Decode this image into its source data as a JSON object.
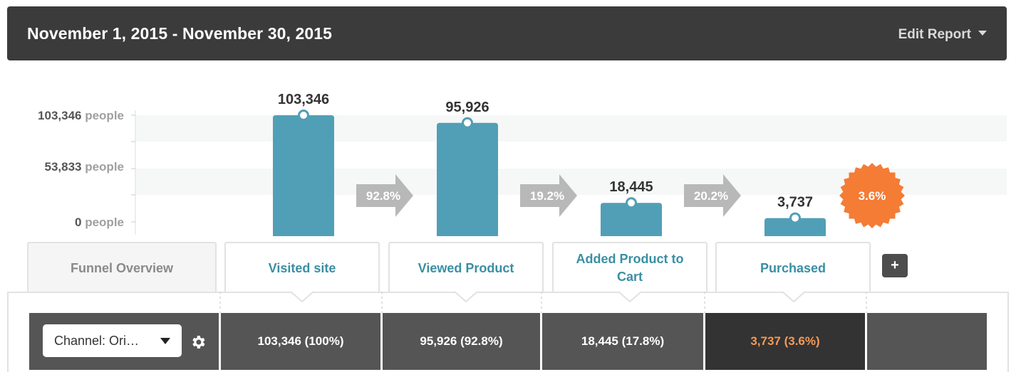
{
  "header": {
    "title": "November 1, 2015 - November 30, 2015",
    "edit_report_label": "Edit Report"
  },
  "chart_data": {
    "type": "bar",
    "unit": "people",
    "categories": [
      "Visited site",
      "Viewed Product",
      "Added Product to Cart",
      "Purchased"
    ],
    "values": [
      103346,
      95926,
      18445,
      3737
    ],
    "value_labels": [
      "103,346",
      "95,926",
      "18,445",
      "3,737"
    ],
    "y_ticks": [
      {
        "value": 103346,
        "label": "103,346",
        "unit": "people"
      },
      {
        "value": 53833,
        "label": "53,833",
        "unit": "people"
      },
      {
        "value": 0,
        "label": "0",
        "unit": "people"
      }
    ],
    "ylim": [
      0,
      103346
    ],
    "conversion_rates": [
      "92.8%",
      "19.2%",
      "20.2%"
    ],
    "overall_conversion": "3.6%",
    "colors": {
      "bar": "#519fb6",
      "arrow": "#b8b8b8",
      "badge": "#f47c35"
    }
  },
  "tabs": {
    "overview": "Funnel Overview",
    "steps": [
      "Visited site",
      "Viewed Product",
      "Added Product to Cart",
      "Purchased"
    ],
    "add_label": "+"
  },
  "table": {
    "segment_select": "Channel: Ori…",
    "cells": [
      "103,346 (100%)",
      "95,926 (92.8%)",
      "18,445 (17.8%)",
      "3,737 (3.6%)"
    ]
  }
}
